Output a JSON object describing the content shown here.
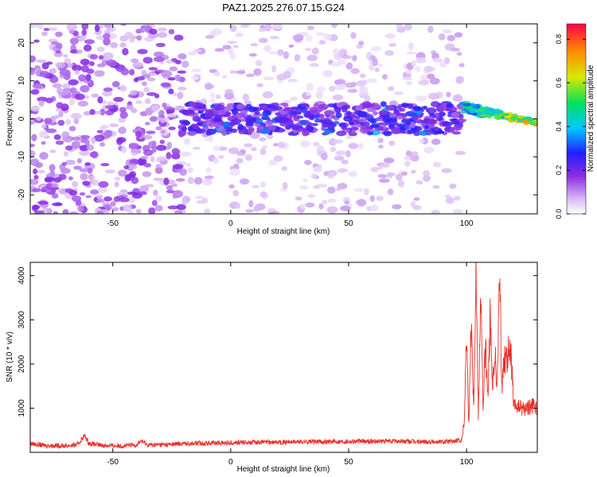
{
  "title": "PAZ1.2025.276.07.15.G24",
  "colors": {
    "plot_border": "#000000",
    "snr_line": "#e8302a",
    "background": "#ffffff"
  },
  "chart_data": [
    {
      "type": "heatmap",
      "title": "PAZ1.2025.276.07.15.G24",
      "xlabel": "Height of straight line (km)",
      "ylabel": "Frequency (Hz)",
      "xlim": [
        -85,
        130
      ],
      "ylim": [
        -25,
        25
      ],
      "xticks": [
        -50,
        0,
        50,
        100
      ],
      "yticks": [
        -20,
        -10,
        0,
        10,
        20
      ],
      "colorbar": {
        "label": "Normalized spectral amplitude",
        "range": [
          0,
          0.87
        ],
        "ticks": [
          "0.0",
          "0.2",
          "0.4",
          "0.6",
          "0.8"
        ],
        "colormap": "rainbow (white to purple to blue to cyan to green to yellow to red)"
      },
      "features": {
        "noise_region_x": [
          -85,
          -20
        ],
        "signal_band_x": [
          -20,
          98
        ],
        "signal_band_freq": [
          -4,
          4
        ],
        "strong_signal_x": [
          98,
          130
        ],
        "strong_signal_freq_start": 3,
        "strong_signal_freq_end": -1
      }
    },
    {
      "type": "line",
      "xlabel": "Height of straight line (km)",
      "ylabel": "SNR (10 * v/v)",
      "xlim": [
        -85,
        130
      ],
      "ylim": [
        0,
        4300
      ],
      "xticks": [
        -50,
        0,
        50,
        100
      ],
      "yticks": [
        1000,
        2000,
        3000,
        4000
      ],
      "series": [
        {
          "color": "#e8302a",
          "x": [
            -85,
            -80,
            -75,
            -70,
            -65,
            -62,
            -60,
            -55,
            -50,
            -45,
            -40,
            -38,
            -35,
            -30,
            -25,
            -20,
            -10,
            0,
            10,
            20,
            30,
            40,
            50,
            60,
            70,
            80,
            90,
            95,
            98,
            99,
            100,
            101,
            102,
            103,
            104,
            105,
            106,
            107,
            108,
            109,
            110,
            111,
            112,
            113,
            114,
            115,
            116,
            117,
            118,
            119,
            120,
            121,
            122,
            125,
            128,
            130
          ],
          "y": [
            200,
            160,
            150,
            150,
            170,
            380,
            200,
            160,
            150,
            150,
            170,
            260,
            170,
            170,
            180,
            200,
            210,
            220,
            230,
            230,
            240,
            240,
            250,
            250,
            250,
            240,
            240,
            250,
            280,
            700,
            2700,
            600,
            3200,
            1000,
            4300,
            800,
            3900,
            900,
            2500,
            1200,
            3000,
            1400,
            2200,
            1500,
            4000,
            1500,
            2200,
            2100,
            2300,
            2100,
            1000,
            1050,
            1020,
            1000,
            1050,
            1000
          ]
        }
      ]
    }
  ]
}
